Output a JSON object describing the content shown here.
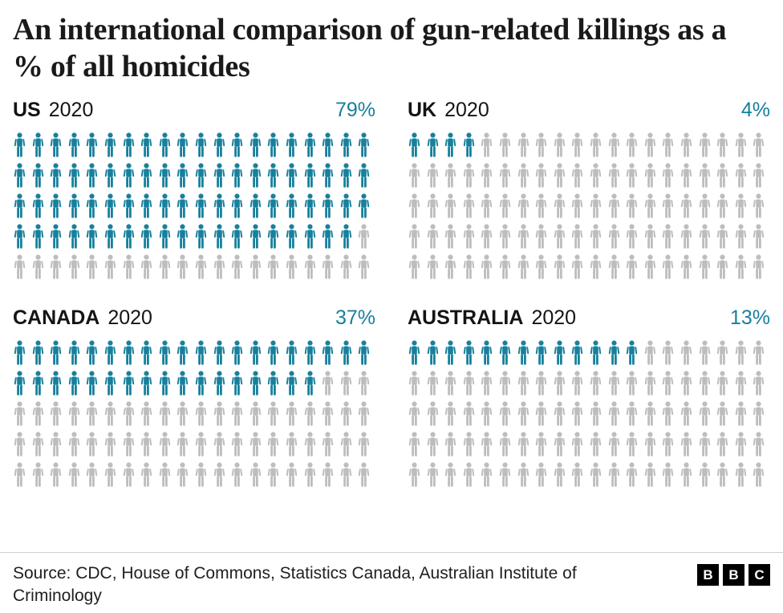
{
  "title": "An international comparison of gun-related killings as a % of all homicides",
  "panels": [
    {
      "country": "US",
      "year": "2020",
      "percent_label": "79%",
      "value": 79
    },
    {
      "country": "UK",
      "year": "2020",
      "percent_label": "4%",
      "value": 4
    },
    {
      "country": "CANADA",
      "year": "2020",
      "percent_label": "37%",
      "value": 37
    },
    {
      "country": "AUSTRALIA",
      "year": "2020",
      "percent_label": "13%",
      "value": 13
    }
  ],
  "footer": {
    "source": "Source: CDC, House of Commons, Statistics Canada, Australian Institute of Criminology",
    "bbc": [
      "B",
      "B",
      "C"
    ]
  },
  "colors": {
    "filled": "#17809c",
    "empty": "#bdbdbd",
    "percent_text": "#17809c",
    "title_text": "#1a1a1a"
  },
  "chart_data": {
    "type": "pictogram",
    "title": "An international comparison of gun-related killings as a % of all homicides",
    "categories": [
      "US",
      "UK",
      "CANADA",
      "AUSTRALIA"
    ],
    "series_year": "2020",
    "values_percent": [
      79,
      4,
      37,
      13
    ],
    "icons_per_panel": 100,
    "icons_per_row": 20,
    "rows_per_panel": 5,
    "unit": "1 person icon = 1 percentage point of homicides",
    "legend": "none",
    "source": "CDC, House of Commons, Statistics Canada, Australian Institute of Criminology"
  }
}
